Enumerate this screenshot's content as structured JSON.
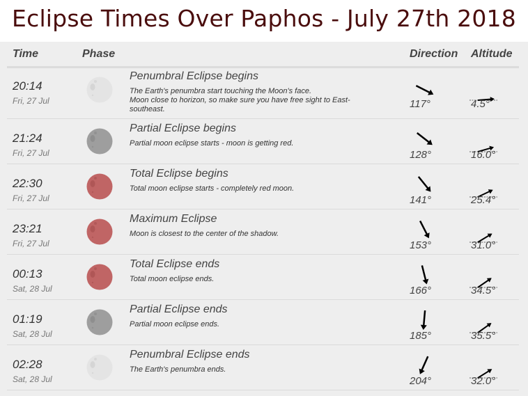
{
  "title": "Eclipse Times Over Paphos - July 27th 2018",
  "headers": {
    "time": "Time",
    "phase": "Phase",
    "direction": "Direction",
    "altitude": "Altitude"
  },
  "colors": {
    "title": "#4a0d0d",
    "penumbral": "#e4e4e4",
    "partial": "#9e9e9e",
    "total": "#c06565"
  },
  "rows": [
    {
      "time": "20:14",
      "date": "Fri, 27 Jul",
      "moon": "penumbral",
      "title": "Penumbral Eclipse begins",
      "desc": "The Earth's penumbra start touching the Moon's face.\nMoon close to horizon, so make sure you have free sight to East-southeast.",
      "direction": "117°",
      "direction_deg": 117,
      "altitude": "4.5°",
      "altitude_deg": 4.5
    },
    {
      "time": "21:24",
      "date": "Fri, 27 Jul",
      "moon": "partial",
      "title": "Partial Eclipse begins",
      "desc": "Partial moon eclipse starts - moon is getting red.",
      "direction": "128°",
      "direction_deg": 128,
      "altitude": "16.0°",
      "altitude_deg": 16.0
    },
    {
      "time": "22:30",
      "date": "Fri, 27 Jul",
      "moon": "total",
      "title": "Total Eclipse begins",
      "desc": "Total moon eclipse starts - completely red moon.",
      "direction": "141°",
      "direction_deg": 141,
      "altitude": "25.4°",
      "altitude_deg": 25.4
    },
    {
      "time": "23:21",
      "date": "Fri, 27 Jul",
      "moon": "total",
      "title": "Maximum Eclipse",
      "desc": "Moon is closest to the center of the shadow.",
      "direction": "153°",
      "direction_deg": 153,
      "altitude": "31.0°",
      "altitude_deg": 31.0
    },
    {
      "time": "00:13",
      "date": "Sat, 28 Jul",
      "moon": "total",
      "title": "Total Eclipse ends",
      "desc": "Total moon eclipse ends.",
      "direction": "166°",
      "direction_deg": 166,
      "altitude": "34.5°",
      "altitude_deg": 34.5
    },
    {
      "time": "01:19",
      "date": "Sat, 28 Jul",
      "moon": "partial",
      "title": "Partial Eclipse ends",
      "desc": "Partial moon eclipse ends.",
      "direction": "185°",
      "direction_deg": 185,
      "altitude": "35.5°",
      "altitude_deg": 35.5
    },
    {
      "time": "02:28",
      "date": "Sat, 28 Jul",
      "moon": "penumbral",
      "title": "Penumbral Eclipse ends",
      "desc": "The Earth's penumbra ends.",
      "direction": "204°",
      "direction_deg": 204,
      "altitude": "32.0°",
      "altitude_deg": 32.0
    }
  ]
}
